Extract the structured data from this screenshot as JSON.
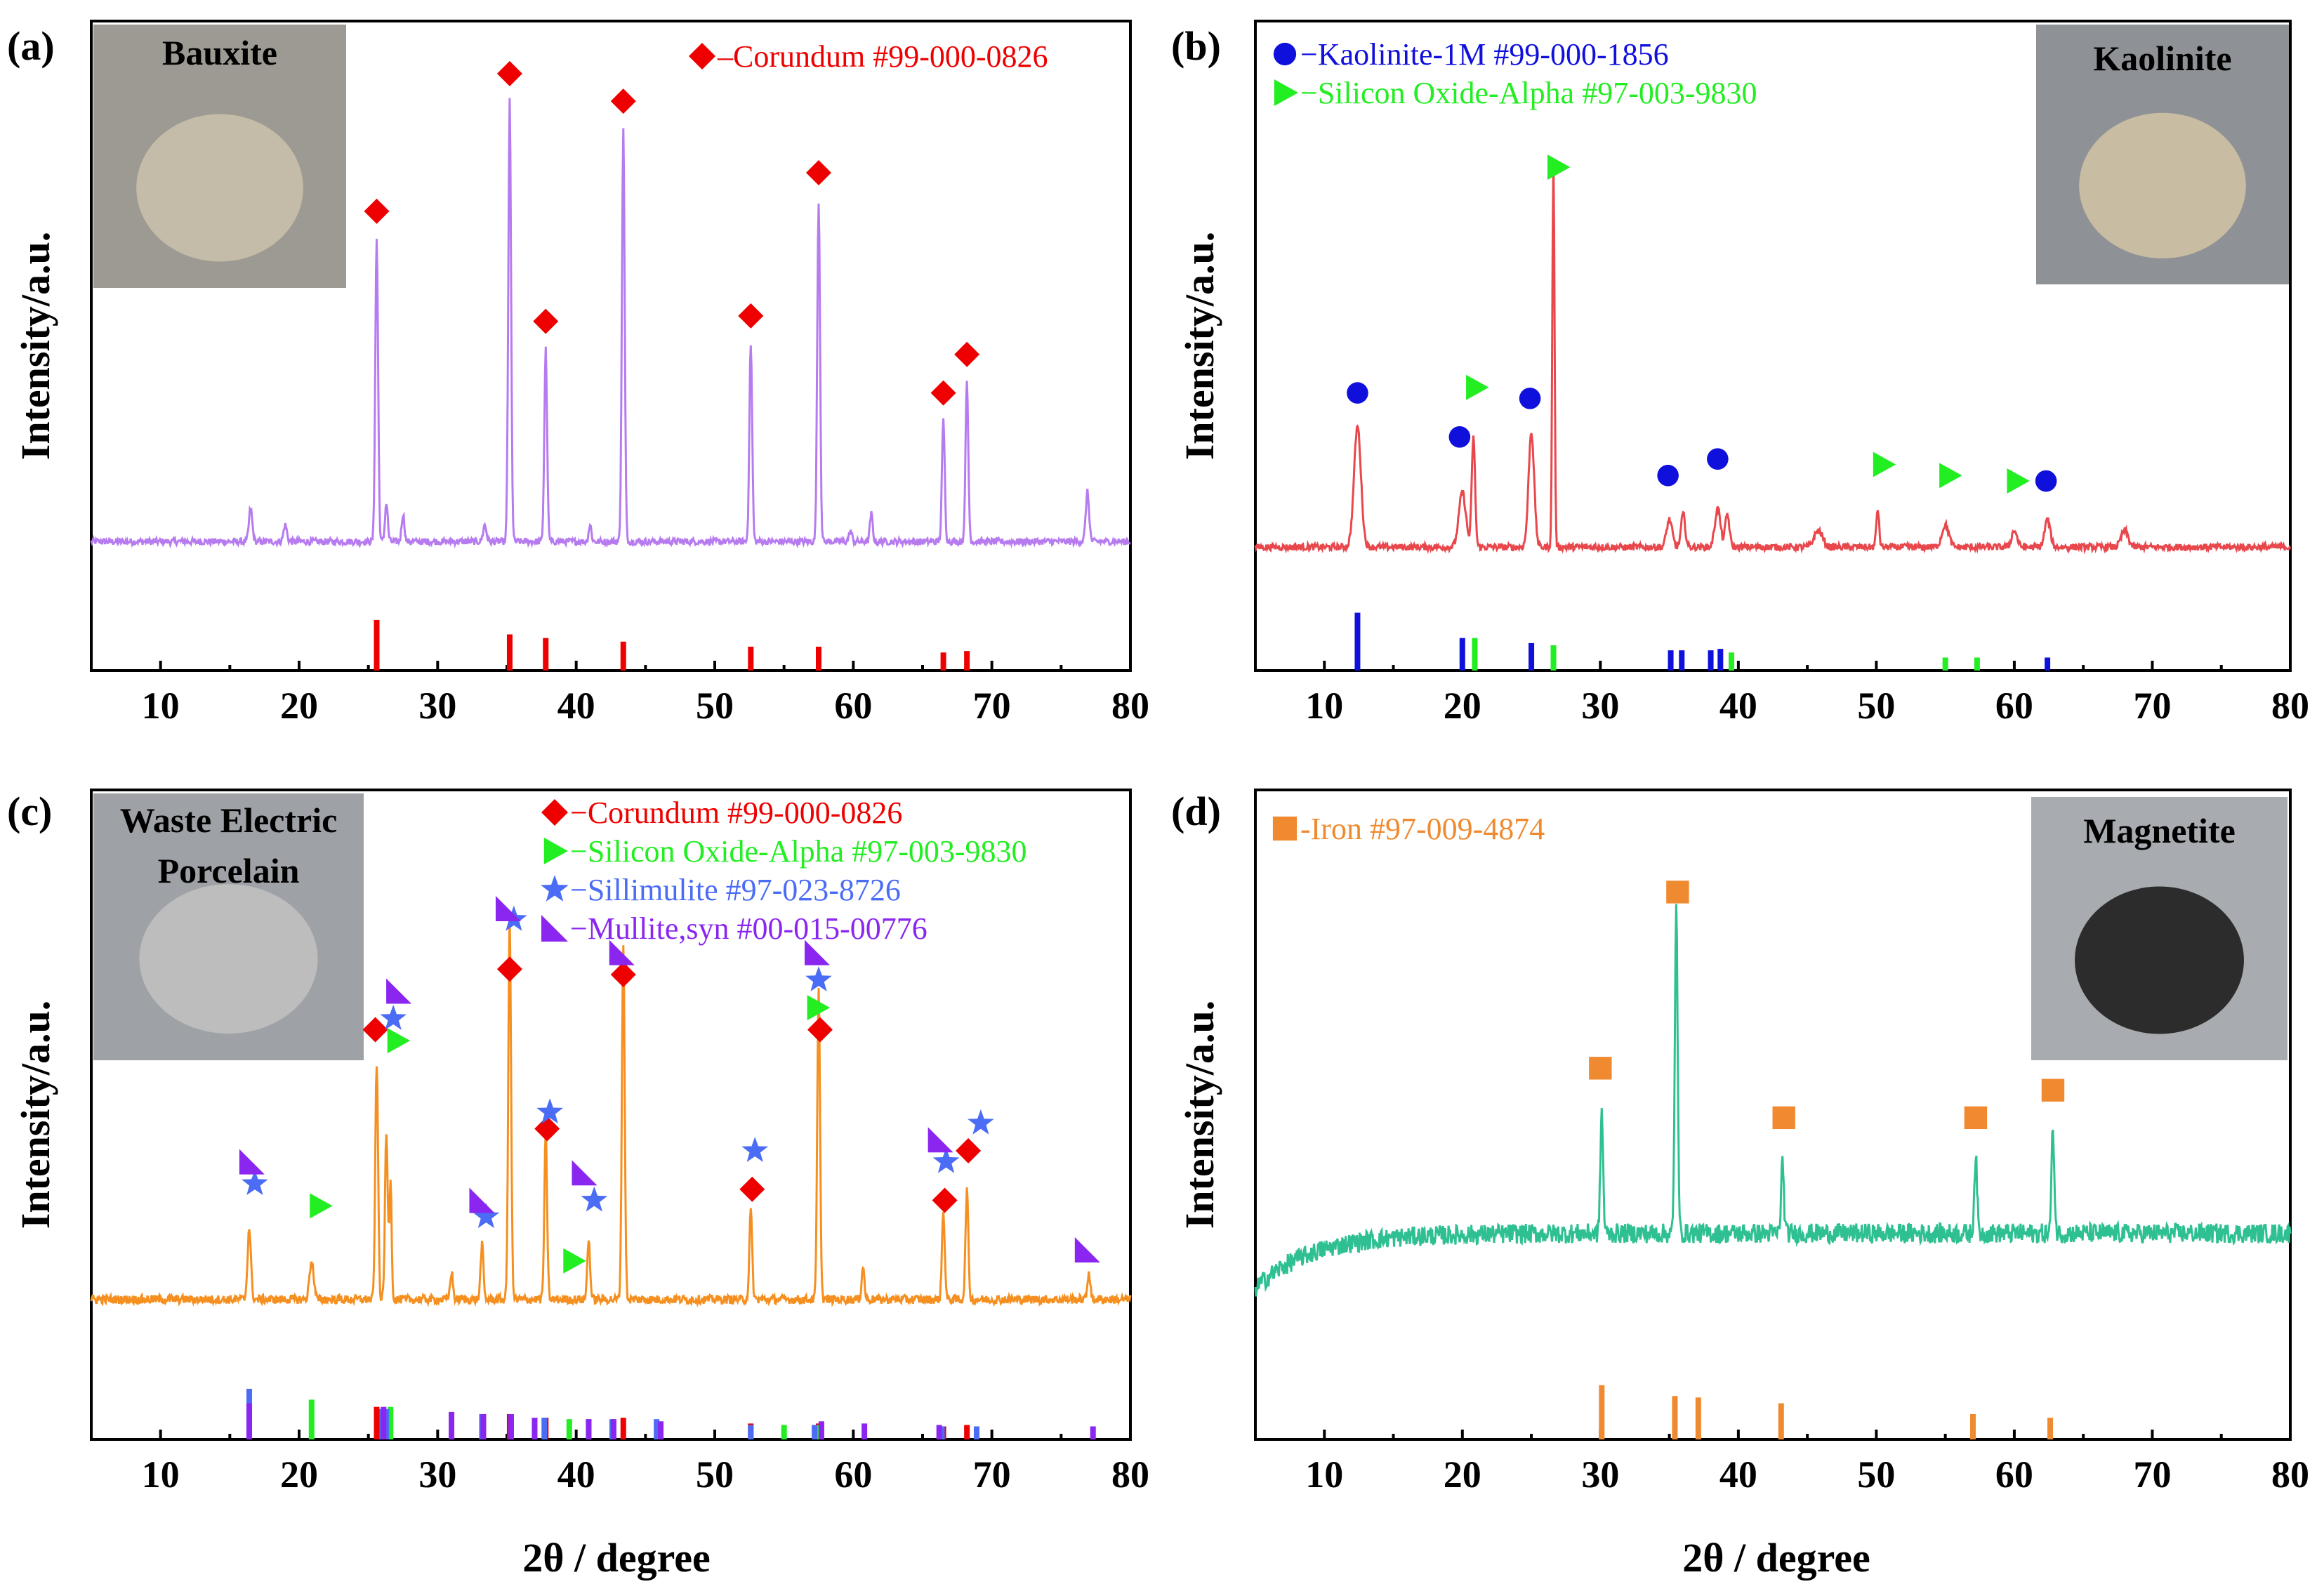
{
  "x_axis_label": "2θ / degree",
  "y_axis_label": "Intensity/a.u.",
  "chart_data": [
    {
      "panel": "(a)",
      "type": "line",
      "inset_label": "Bauxite",
      "xlim": [
        5,
        80
      ],
      "x_ticks": [
        10,
        20,
        30,
        40,
        50,
        60,
        70,
        80
      ],
      "line_color": "#b77bf0",
      "baseline": 0.08,
      "noise": 0.006,
      "peaks": [
        {
          "x": 16.5,
          "h": 0.06,
          "w": 0.12
        },
        {
          "x": 19.0,
          "h": 0.03,
          "w": 0.12
        },
        {
          "x": 25.6,
          "h": 0.55,
          "w": 0.1
        },
        {
          "x": 26.3,
          "h": 0.07,
          "w": 0.1
        },
        {
          "x": 27.5,
          "h": 0.05,
          "w": 0.1
        },
        {
          "x": 33.4,
          "h": 0.03,
          "w": 0.12
        },
        {
          "x": 35.2,
          "h": 0.8,
          "w": 0.1
        },
        {
          "x": 37.8,
          "h": 0.35,
          "w": 0.1
        },
        {
          "x": 41.0,
          "h": 0.03,
          "w": 0.1
        },
        {
          "x": 43.4,
          "h": 0.75,
          "w": 0.1
        },
        {
          "x": 52.6,
          "h": 0.36,
          "w": 0.1
        },
        {
          "x": 57.5,
          "h": 0.62,
          "w": 0.1
        },
        {
          "x": 59.8,
          "h": 0.02,
          "w": 0.1
        },
        {
          "x": 61.3,
          "h": 0.05,
          "w": 0.1
        },
        {
          "x": 66.5,
          "h": 0.22,
          "w": 0.1
        },
        {
          "x": 68.2,
          "h": 0.29,
          "w": 0.1
        },
        {
          "x": 76.9,
          "h": 0.09,
          "w": 0.12
        }
      ],
      "markers": [
        {
          "shape": "diamond",
          "color": "#ee0000",
          "x": [
            25.6,
            35.2,
            37.8,
            43.4,
            52.6,
            57.5,
            66.5,
            68.2
          ],
          "y": [
            0.68,
            0.93,
            0.48,
            0.88,
            0.49,
            0.75,
            0.35,
            0.42
          ]
        }
      ],
      "references": [
        {
          "color": "#ee0000",
          "x": [
            25.6,
            35.2,
            37.8,
            43.4,
            52.6,
            57.5,
            66.5,
            68.2
          ],
          "h": [
            0.7,
            0.5,
            0.45,
            0.4,
            0.33,
            0.33,
            0.25,
            0.27
          ]
        }
      ],
      "legend": [
        {
          "shape": "diamond",
          "color": "#ee0000",
          "text": "–Corundum #99-000-0826"
        }
      ]
    },
    {
      "panel": "(b)",
      "type": "line",
      "inset_label": "Kaolinite",
      "xlim": [
        5,
        80
      ],
      "x_ticks": [
        10,
        20,
        30,
        40,
        50,
        60,
        70,
        80
      ],
      "line_color": "#e8474c",
      "baseline": 0.07,
      "noise": 0.006,
      "peaks": [
        {
          "x": 12.4,
          "h": 0.22,
          "w": 0.25
        },
        {
          "x": 20.0,
          "h": 0.1,
          "w": 0.25
        },
        {
          "x": 20.8,
          "h": 0.2,
          "w": 0.12
        },
        {
          "x": 25.0,
          "h": 0.21,
          "w": 0.2
        },
        {
          "x": 26.6,
          "h": 0.7,
          "w": 0.08
        },
        {
          "x": 35.0,
          "h": 0.05,
          "w": 0.2
        },
        {
          "x": 36.0,
          "h": 0.06,
          "w": 0.15
        },
        {
          "x": 38.5,
          "h": 0.07,
          "w": 0.2
        },
        {
          "x": 39.2,
          "h": 0.06,
          "w": 0.15
        },
        {
          "x": 45.8,
          "h": 0.03,
          "w": 0.3
        },
        {
          "x": 50.1,
          "h": 0.07,
          "w": 0.1
        },
        {
          "x": 55.0,
          "h": 0.04,
          "w": 0.25
        },
        {
          "x": 60.0,
          "h": 0.03,
          "w": 0.2
        },
        {
          "x": 62.4,
          "h": 0.05,
          "w": 0.2
        },
        {
          "x": 68.0,
          "h": 0.03,
          "w": 0.25
        }
      ],
      "markers": [
        {
          "shape": "circle",
          "color": "#1010dd",
          "x": [
            12.4,
            19.8,
            24.9,
            34.9,
            38.5,
            62.3
          ],
          "y": [
            0.35,
            0.27,
            0.34,
            0.2,
            0.23,
            0.19
          ]
        },
        {
          "shape": "triangle",
          "color": "#22ee22",
          "x": [
            21.0,
            26.9,
            50.5,
            55.3,
            60.2
          ],
          "y": [
            0.36,
            0.76,
            0.22,
            0.2,
            0.19
          ]
        }
      ],
      "references": [
        {
          "color": "#1010dd",
          "x": [
            12.4,
            20.0,
            25.0,
            35.1,
            35.9,
            38.0,
            38.7,
            62.4
          ],
          "h": [
            0.8,
            0.45,
            0.38,
            0.28,
            0.28,
            0.28,
            0.3,
            0.18
          ]
        },
        {
          "color": "#22ee22",
          "x": [
            20.9,
            26.6,
            39.5,
            55.0,
            57.3
          ],
          "h": [
            0.45,
            0.35,
            0.25,
            0.18,
            0.18
          ]
        }
      ],
      "legend": [
        {
          "shape": "circle",
          "color": "#1010dd",
          "text": "−Kaolinite-1M #99-000-1856"
        },
        {
          "shape": "triangle",
          "color": "#22ee22",
          "text": "−Silicon Oxide-Alpha #97-003-9830"
        }
      ]
    },
    {
      "panel": "(c)",
      "type": "line",
      "inset_label": [
        "Waste Electric",
        "Porcelain"
      ],
      "xlim": [
        5,
        80
      ],
      "x_ticks": [
        10,
        20,
        30,
        40,
        50,
        60,
        70,
        80
      ],
      "line_color": "#f59020",
      "baseline": 0.1,
      "noise": 0.008,
      "peaks": [
        {
          "x": 16.4,
          "h": 0.13,
          "w": 0.12
        },
        {
          "x": 20.9,
          "h": 0.07,
          "w": 0.15
        },
        {
          "x": 25.6,
          "h": 0.43,
          "w": 0.1
        },
        {
          "x": 26.3,
          "h": 0.3,
          "w": 0.1
        },
        {
          "x": 26.6,
          "h": 0.22,
          "w": 0.08
        },
        {
          "x": 31.0,
          "h": 0.05,
          "w": 0.1
        },
        {
          "x": 33.2,
          "h": 0.1,
          "w": 0.1
        },
        {
          "x": 35.2,
          "h": 0.7,
          "w": 0.1
        },
        {
          "x": 37.8,
          "h": 0.3,
          "w": 0.1
        },
        {
          "x": 40.9,
          "h": 0.11,
          "w": 0.1
        },
        {
          "x": 43.4,
          "h": 0.65,
          "w": 0.1
        },
        {
          "x": 52.6,
          "h": 0.16,
          "w": 0.1
        },
        {
          "x": 57.5,
          "h": 0.56,
          "w": 0.1
        },
        {
          "x": 60.7,
          "h": 0.06,
          "w": 0.1
        },
        {
          "x": 66.5,
          "h": 0.16,
          "w": 0.1
        },
        {
          "x": 68.2,
          "h": 0.2,
          "w": 0.1
        },
        {
          "x": 77.0,
          "h": 0.05,
          "w": 0.1
        }
      ],
      "markers": [
        {
          "shape": "diamond",
          "color": "#ee0000",
          "x": [
            25.5,
            35.2,
            37.9,
            43.4,
            52.7,
            57.6,
            66.6,
            68.3
          ],
          "y": [
            0.59,
            0.7,
            0.41,
            0.69,
            0.3,
            0.59,
            0.28,
            0.37
          ]
        },
        {
          "shape": "triangle",
          "color": "#22ee22",
          "x": [
            21.5,
            27.1,
            39.8,
            57.4
          ],
          "y": [
            0.27,
            0.57,
            0.17,
            0.63
          ]
        },
        {
          "shape": "star",
          "color": "#4b6cf5",
          "x": [
            16.8,
            26.8,
            33.5,
            35.5,
            38.1,
            41.3,
            52.9,
            57.5,
            66.7,
            69.2
          ],
          "y": [
            0.31,
            0.61,
            0.25,
            0.79,
            0.44,
            0.28,
            0.37,
            0.68,
            0.35,
            0.42
          ]
        },
        {
          "shape": "flag",
          "color": "#8a26f0",
          "x": [
            16.6,
            27.2,
            33.2,
            35.1,
            40.6,
            43.3,
            57.4,
            66.3,
            76.9
          ],
          "y": [
            0.35,
            0.66,
            0.28,
            0.81,
            0.33,
            0.73,
            0.73,
            0.39,
            0.19
          ]
        }
      ],
      "references": [
        {
          "color": "#ee0000",
          "x": [
            25.6,
            35.2,
            37.8,
            43.4,
            52.6,
            57.5,
            66.5,
            68.2
          ],
          "h": [
            0.45,
            0.35,
            0.3,
            0.3,
            0.22,
            0.22,
            0.18,
            0.2
          ]
        },
        {
          "color": "#22ee22",
          "x": [
            20.9,
            26.6,
            39.5,
            55.0,
            57.3
          ],
          "h": [
            0.55,
            0.45,
            0.28,
            0.2,
            0.2
          ]
        },
        {
          "color": "#4b6cf5",
          "x": [
            16.4,
            26.0,
            26.3,
            33.2,
            35.3,
            37.7,
            40.9,
            42.6,
            45.8,
            52.6,
            57.2,
            66.4,
            68.9
          ],
          "h": [
            0.7,
            0.42,
            0.42,
            0.35,
            0.3,
            0.3,
            0.28,
            0.28,
            0.28,
            0.2,
            0.2,
            0.18,
            0.18
          ]
        },
        {
          "color": "#8a26f0",
          "x": [
            16.4,
            26.1,
            31.0,
            33.3,
            35.3,
            37.0,
            40.9,
            42.7,
            46.1,
            57.7,
            60.8,
            66.2,
            77.3
          ],
          "h": [
            0.5,
            0.45,
            0.38,
            0.35,
            0.35,
            0.3,
            0.28,
            0.28,
            0.25,
            0.25,
            0.22,
            0.2,
            0.18
          ]
        }
      ],
      "legend": [
        {
          "shape": "diamond",
          "color": "#ee0000",
          "text": "−Corundum #99-000-0826"
        },
        {
          "shape": "triangle",
          "color": "#22ee22",
          "text": "−Silicon Oxide-Alpha #97-003-9830"
        },
        {
          "shape": "star",
          "color": "#4b6cf5",
          "text": "−Sillimulite #97-023-8726"
        },
        {
          "shape": "flag",
          "color": "#8a26f0",
          "text": "−Mullite,syn #00-015-00776"
        }
      ]
    },
    {
      "panel": "(d)",
      "type": "line",
      "inset_label": "Magnetite",
      "xlim": [
        5,
        80
      ],
      "x_ticks": [
        10,
        20,
        30,
        40,
        50,
        60,
        70,
        80
      ],
      "line_color": "#2ec092",
      "baseline": 0.22,
      "noise": 0.018,
      "rise": true,
      "peaks": [
        {
          "x": 30.1,
          "h": 0.22,
          "w": 0.1
        },
        {
          "x": 35.5,
          "h": 0.6,
          "w": 0.1
        },
        {
          "x": 43.2,
          "h": 0.13,
          "w": 0.1
        },
        {
          "x": 57.2,
          "h": 0.14,
          "w": 0.1
        },
        {
          "x": 62.8,
          "h": 0.19,
          "w": 0.1
        }
      ],
      "markers": [
        {
          "shape": "square",
          "color": "#f08a30",
          "x": [
            30.0,
            35.6,
            43.3,
            57.2,
            62.8
          ],
          "y": [
            0.52,
            0.84,
            0.43,
            0.43,
            0.48
          ]
        }
      ],
      "references": [
        {
          "color": "#f08a30",
          "x": [
            30.1,
            35.4,
            37.1,
            43.1,
            57.0,
            62.6
          ],
          "h": [
            0.75,
            0.6,
            0.58,
            0.5,
            0.35,
            0.3
          ]
        }
      ],
      "legend": [
        {
          "shape": "square",
          "color": "#f08a30",
          "text": "-Iron #97-009-4874"
        }
      ]
    }
  ]
}
